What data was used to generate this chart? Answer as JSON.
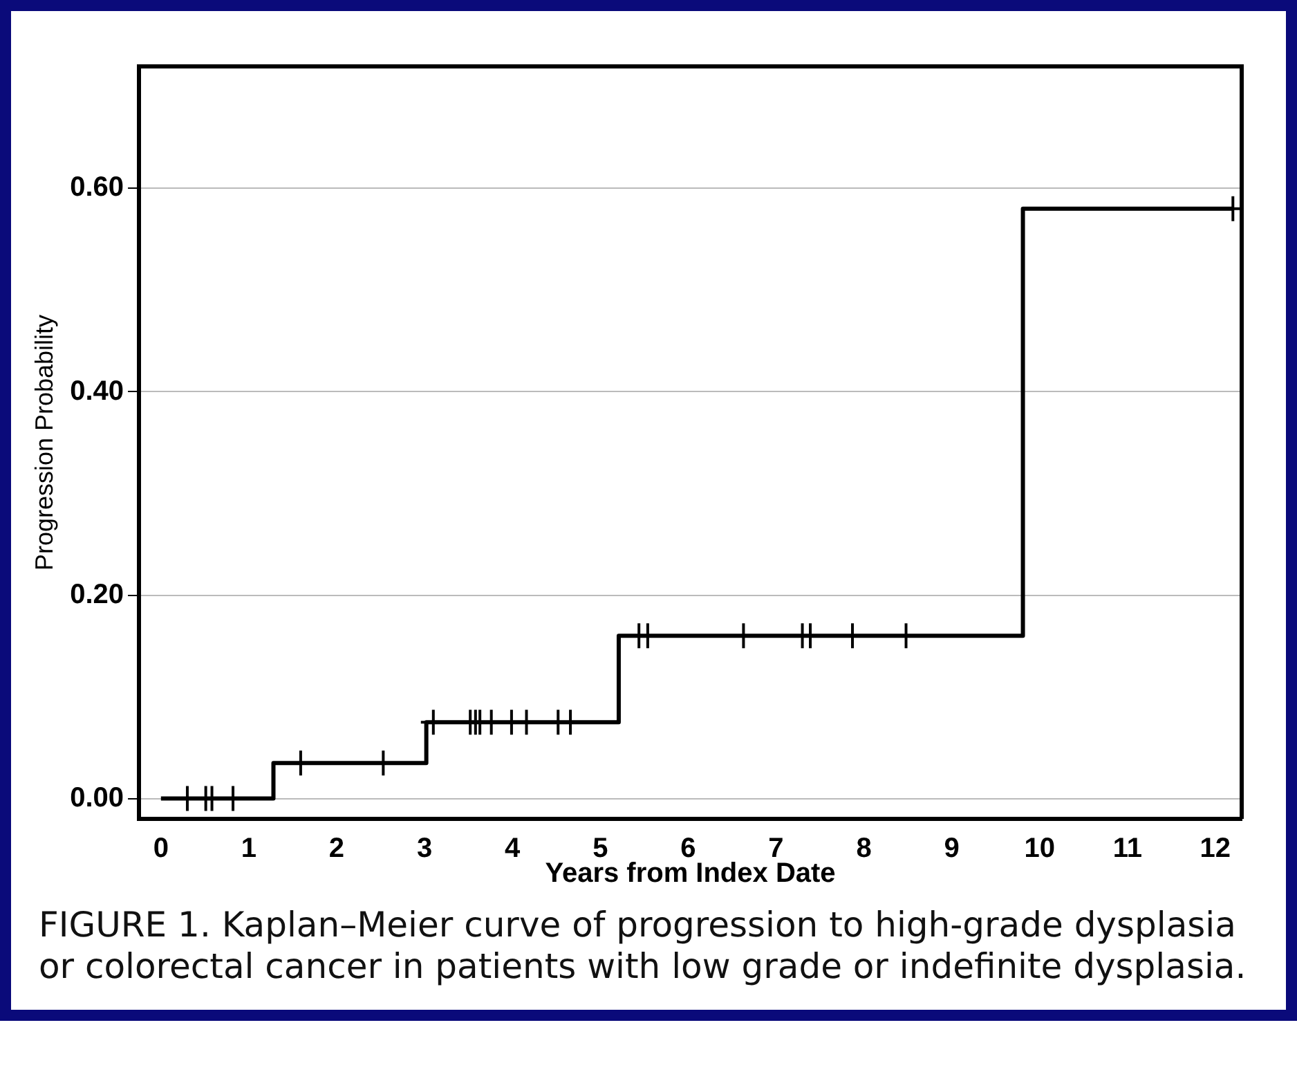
{
  "chart_data": {
    "type": "step",
    "xlabel": "Years from Index Date",
    "ylabel": "Progression Probability",
    "xlim": [
      -0.25,
      12.3
    ],
    "xticks": [
      0,
      1,
      2,
      3,
      4,
      5,
      6,
      7,
      8,
      9,
      10,
      11,
      12
    ],
    "ylim": [
      -0.02,
      0.72
    ],
    "yticks": [
      {
        "value": 0,
        "label": "0.00"
      },
      {
        "value": 0.2,
        "label": "0.20"
      },
      {
        "value": 0.4,
        "label": "0.40"
      },
      {
        "value": 0.6,
        "label": "0.60"
      }
    ],
    "grid": "y",
    "legend": false,
    "series": [
      {
        "color": "#000000",
        "x": [
          0,
          1.28,
          3.02,
          5.21,
          9.81,
          12.2
        ],
        "values": [
          0,
          0.035,
          0.075,
          0.16,
          0.58,
          0.58
        ]
      },
      {
        "type": "scatter",
        "marker": "cross",
        "color": "#000000",
        "x": [
          0.3,
          0.51,
          0.58,
          0.82,
          1.59,
          2.53,
          3.1,
          3.52,
          3.58,
          3.63,
          3.76,
          3.99,
          4.16,
          4.52,
          4.66,
          5.44,
          5.54,
          6.63,
          7.3,
          7.39,
          7.87,
          8.48,
          12.2
        ],
        "values": [
          0,
          0,
          0,
          0,
          0.035,
          0.035,
          0.075,
          0.075,
          0.075,
          0.075,
          0.075,
          0.075,
          0.075,
          0.075,
          0.075,
          0.16,
          0.16,
          0.16,
          0.16,
          0.16,
          0.16,
          0.16,
          0.58
        ]
      }
    ],
    "annotations": [
      "FIGURE 1. Kaplan–Meier curve of progression to high-grade dysplasia or colorectal cancer in patients with low grade or indefinite dysplasia."
    ]
  }
}
